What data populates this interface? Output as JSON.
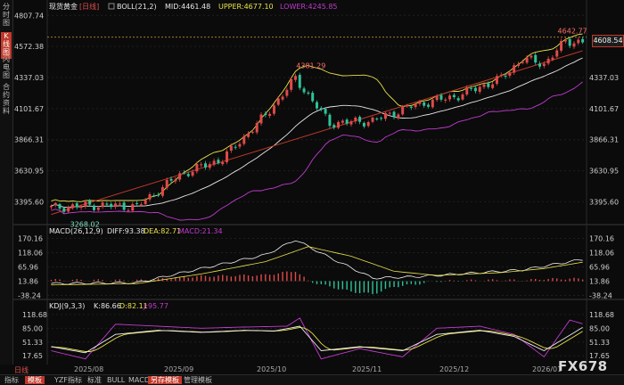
{
  "sidebar": {
    "tabs": [
      {
        "label": "分时图",
        "active": false
      },
      {
        "label": "K线图",
        "active": true
      },
      {
        "label": "闪电图",
        "active": false
      },
      {
        "label": "合约资料",
        "active": false
      }
    ]
  },
  "header": {
    "symbol": "现货黄金",
    "period": "[日线]",
    "boll_label": "BOLL(21,2)",
    "mid": "MID:4461.48",
    "upper": "UPPER:4677.10",
    "lower": "LOWER:4245.85"
  },
  "macd_header": {
    "label": "MACD(26,12,9)",
    "diff": "DIFF:93.38",
    "dea": "DEA:82.71",
    "macd": "MACD:21.34"
  },
  "kdj_header": {
    "label": "KDJ(9,3,3)",
    "k": "K:86.66",
    "d": "D:82.11",
    "j": "J:95.77"
  },
  "price_tag": "4608.54",
  "annotations": {
    "high_label": "4381.29",
    "low_label": "3268.02",
    "last_high_label": "4642.77"
  },
  "x_axis": {
    "period_label": "日线",
    "months": [
      "2025/08",
      "2025/09",
      "2025/10",
      "2025/11",
      "2025/12",
      "2026/01"
    ]
  },
  "bottom_tabs": [
    {
      "label": "指标",
      "active": false
    },
    {
      "label": "模板",
      "active": true
    },
    {
      "label": "YZF指标",
      "active": false
    },
    {
      "label": "标准",
      "active": false
    },
    {
      "label": "BULL",
      "active": false
    },
    {
      "label": "MACD",
      "active": false
    },
    {
      "label": "另存模板",
      "active": true
    },
    {
      "label": "管理模板",
      "active": false
    }
  ],
  "watermark": "FX678",
  "colors": {
    "up": "#e04a4a",
    "down": "#2fc39a",
    "boll_upper": "#e8e24a",
    "boll_mid": "#e6e6e6",
    "boll_lower": "#c13bd1",
    "trend": "#c0392b",
    "macd_diff": "#f0f0f0",
    "macd_dea": "#e8e24a",
    "kdj_k": "#f0f0f0",
    "kdj_d": "#e8e24a",
    "kdj_j": "#c13bd1"
  },
  "chart_data": [
    {
      "type": "candlestick",
      "title": "",
      "y_ticks": [
        4807.74,
        4572.38,
        4337.03,
        4101.67,
        3866.31,
        3630.95,
        3395.6
      ],
      "y_ticks_right": [
        4337.03,
        4101.67,
        3866.31,
        3630.95,
        3395.6
      ],
      "ylim": [
        3250,
        4830
      ],
      "grid": true,
      "dashed_reference": 4642.77,
      "trendline": [
        [
          0,
          3300
        ],
        [
          124,
          4540
        ]
      ],
      "annotations": [
        {
          "bar": 58,
          "value": 4381.29,
          "text": "4381.29"
        },
        {
          "bar": 4,
          "value": 3268.02,
          "text": "3268.02"
        },
        {
          "bar": 119,
          "value": 4642.77,
          "text": "4642.77"
        }
      ],
      "last_price": 4608.54,
      "key_points": [
        {
          "bar": 0,
          "close": 3350
        },
        {
          "bar": 10,
          "close": 3370
        },
        {
          "bar": 20,
          "close": 3360
        },
        {
          "bar": 30,
          "close": 3600
        },
        {
          "bar": 40,
          "close": 3720
        },
        {
          "bar": 50,
          "close": 4050
        },
        {
          "bar": 57,
          "close": 4330
        },
        {
          "bar": 65,
          "close": 3990
        },
        {
          "bar": 75,
          "close": 4010
        },
        {
          "bar": 85,
          "close": 4130
        },
        {
          "bar": 95,
          "close": 4200
        },
        {
          "bar": 105,
          "close": 4330
        },
        {
          "bar": 110,
          "close": 4480
        },
        {
          "bar": 115,
          "close": 4440
        },
        {
          "bar": 120,
          "close": 4610
        }
      ]
    },
    {
      "type": "line",
      "name": "MACD",
      "y_ticks": [
        170.16,
        118.06,
        65.96,
        13.86,
        -38.24
      ],
      "ylim": [
        -40,
        175
      ],
      "series": [
        {
          "name": "DIFF",
          "key_points": [
            [
              0,
              5
            ],
            [
              20,
              8
            ],
            [
              35,
              60
            ],
            [
              50,
              110
            ],
            [
              57,
              165
            ],
            [
              65,
              100
            ],
            [
              75,
              25
            ],
            [
              85,
              30
            ],
            [
              100,
              45
            ],
            [
              110,
              55
            ],
            [
              124,
              93
            ]
          ]
        },
        {
          "name": "DEA",
          "key_points": [
            [
              0,
              0
            ],
            [
              20,
              5
            ],
            [
              35,
              40
            ],
            [
              50,
              85
            ],
            [
              60,
              140
            ],
            [
              70,
              105
            ],
            [
              80,
              50
            ],
            [
              90,
              35
            ],
            [
              105,
              45
            ],
            [
              115,
              60
            ],
            [
              124,
              83
            ]
          ]
        }
      ]
    },
    {
      "type": "line",
      "name": "KDJ",
      "y_ticks": [
        118.68,
        85.0,
        51.33,
        17.65
      ],
      "ylim": [
        5,
        125
      ],
      "series": [
        {
          "name": "K",
          "key_points": [
            [
              0,
              40
            ],
            [
              8,
              25
            ],
            [
              15,
              70
            ],
            [
              25,
              80
            ],
            [
              35,
              75
            ],
            [
              45,
              80
            ],
            [
              52,
              78
            ],
            [
              58,
              90
            ],
            [
              63,
              30
            ],
            [
              72,
              40
            ],
            [
              82,
              30
            ],
            [
              90,
              70
            ],
            [
              100,
              80
            ],
            [
              108,
              65
            ],
            [
              115,
              30
            ],
            [
              124,
              87
            ]
          ]
        },
        {
          "name": "J",
          "key_points": [
            [
              0,
              30
            ],
            [
              8,
              10
            ],
            [
              15,
              95
            ],
            [
              25,
              90
            ],
            [
              35,
              85
            ],
            [
              45,
              88
            ],
            [
              55,
              90
            ],
            [
              58,
              110
            ],
            [
              63,
              10
            ],
            [
              72,
              35
            ],
            [
              82,
              15
            ],
            [
              90,
              85
            ],
            [
              100,
              90
            ],
            [
              108,
              70
            ],
            [
              115,
              15
            ],
            [
              121,
              105
            ],
            [
              124,
              96
            ]
          ]
        }
      ]
    }
  ]
}
